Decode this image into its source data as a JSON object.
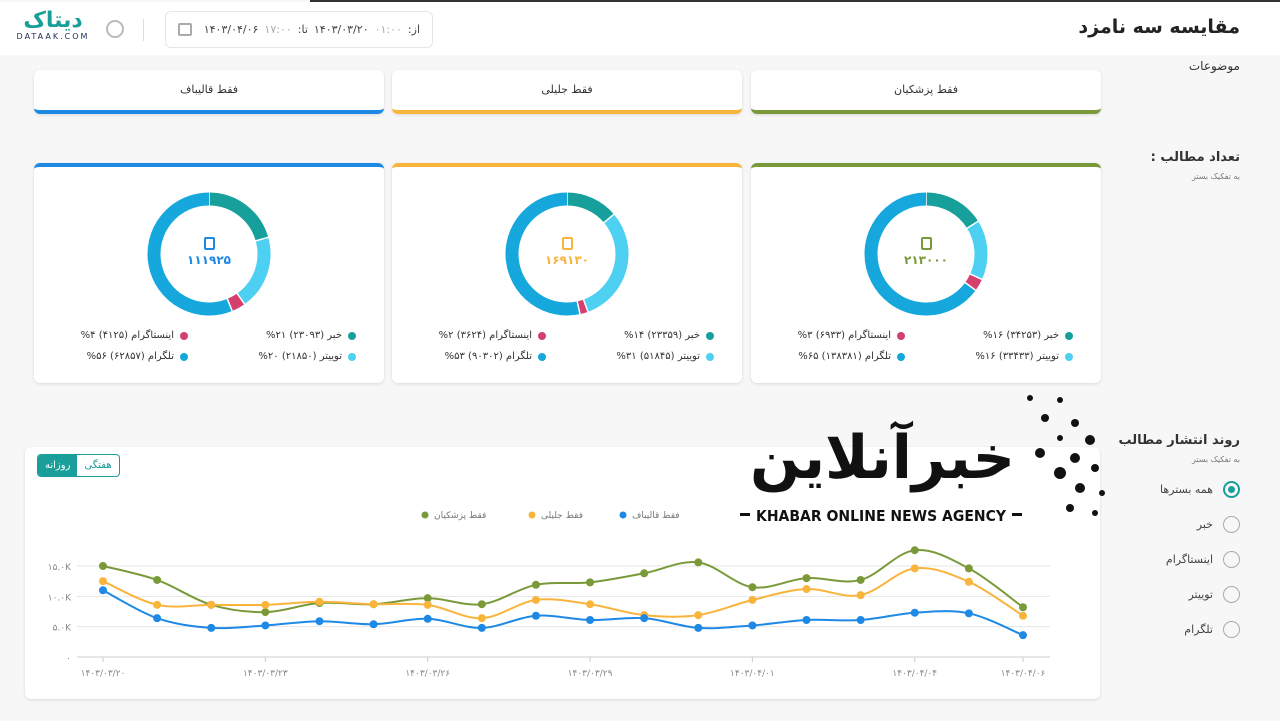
{
  "header": {
    "logo_fa": "دیتاک",
    "logo_en": "DATAAK.COM",
    "date_from_label": "از:",
    "date_from_time": "۰۱:۰۰",
    "date_from": "۱۴۰۳/۰۳/۲۰",
    "date_to_label": "تا:",
    "date_to_time": "۱۷:۰۰",
    "date_to": "۱۴۰۳/۰۴/۰۶",
    "title": "مقایسه سه نامزد"
  },
  "sidebar": {
    "topics_label": "موضوعات",
    "count_label": "تعداد مطالب :",
    "count_sub": "به تفکیک بستر",
    "trend_label": "روند انتشار مطالب",
    "trend_sub": "به تفکیک بستر",
    "radios": [
      {
        "label": "همه بسترها",
        "checked": true
      },
      {
        "label": "خبر"
      },
      {
        "label": "اینستاگرام"
      },
      {
        "label": "توییتر"
      },
      {
        "label": "تلگرام"
      }
    ]
  },
  "colors": {
    "news": "#17a09b",
    "twitter": "#4dd0f2",
    "instagram": "#d43f6e",
    "telegram": "#16a8dc",
    "pezeshkian": "#7a9a3a",
    "jalili": "#f9b43c",
    "ghalibaf": "#1e88e5"
  },
  "candidates": [
    {
      "name": "فقط پزشکیان",
      "color": "#7a9a3a",
      "total": "۲۱۳۰۰۰",
      "platforms": [
        {
          "label": "خبر (۳۴۲۵۳) ۱۶%",
          "value": 34253
        },
        {
          "label": "توییتر (۳۳۴۳۳) ۱۶%",
          "value": 33433
        },
        {
          "label": "اینستاگرام (۶۹۳۳) ۳%",
          "value": 6933
        },
        {
          "label": "تلگرام (۱۳۸۳۸۱) ۶۵%",
          "value": 138381
        }
      ]
    },
    {
      "name": "فقط جلیلی",
      "color": "#f9b43c",
      "total": "۱۶۹۱۳۰",
      "platforms": [
        {
          "label": "خبر (۲۳۳۵۹) ۱۴%",
          "value": 23359
        },
        {
          "label": "توییتر (۵۱۸۴۵) ۳۱%",
          "value": 51845
        },
        {
          "label": "اینستاگرام (۳۶۲۴) ۲%",
          "value": 3624
        },
        {
          "label": "تلگرام (۹۰۳۰۲) ۵۳%",
          "value": 90302
        }
      ]
    },
    {
      "name": "فقط قالیباف",
      "color": "#1e88e5",
      "total": "۱۱۱۹۲۵",
      "platforms": [
        {
          "label": "خبر (۲۳۰۹۳) ۲۱%",
          "value": 23093
        },
        {
          "label": "توییتر (۲۱۸۵۰) ۲۰%",
          "value": 21850
        },
        {
          "label": "اینستاگرام (۴۱۲۵) ۴%",
          "value": 4125
        },
        {
          "label": "تلگرام (۶۲۸۵۷) ۵۶%",
          "value": 62857
        }
      ]
    }
  ],
  "toggle": {
    "weekly": "هفتگی",
    "daily": "روزانه"
  },
  "watermark": {
    "fa": "خبرآنلاین",
    "en": "KHABAR ONLINE NEWS AGENCY"
  },
  "chart_data": {
    "type": "line",
    "ylim": [
      0,
      18000
    ],
    "yticks": [
      {
        "v": 0,
        "label": "۰"
      },
      {
        "v": 5000,
        "label": "۵.۰K"
      },
      {
        "v": 10000,
        "label": "۱۰.۰K"
      },
      {
        "v": 15000,
        "label": "۱۵.۰K"
      }
    ],
    "xticks": [
      {
        "i": 0,
        "label": "۱۴۰۳/۰۳/۲۰"
      },
      {
        "i": 3,
        "label": "۱۴۰۳/۰۳/۲۳"
      },
      {
        "i": 6,
        "label": "۱۴۰۳/۰۳/۲۶"
      },
      {
        "i": 9,
        "label": "۱۴۰۳/۰۳/۲۹"
      },
      {
        "i": 12,
        "label": "۱۴۰۳/۰۴/۰۱"
      },
      {
        "i": 15,
        "label": "۱۴۰۳/۰۴/۰۴"
      },
      {
        "i": 17,
        "label": "۱۴۰۳/۰۴/۰۶"
      }
    ],
    "series": [
      {
        "name": "فقط پزشکیان",
        "color": "#7a9a3a",
        "values": [
          15000,
          12700,
          8600,
          7400,
          8900,
          8700,
          9700,
          8700,
          11900,
          12300,
          13800,
          15600,
          11500,
          13000,
          12700,
          17600,
          14600,
          8200
        ]
      },
      {
        "name": "فقط جلیلی",
        "color": "#f9b43c",
        "values": [
          12500,
          8600,
          8600,
          8600,
          9100,
          8700,
          8600,
          6400,
          9400,
          8700,
          6900,
          6900,
          9400,
          11200,
          10200,
          14600,
          12400,
          6800
        ]
      },
      {
        "name": "فقط قالیباف",
        "color": "#1e88e5",
        "values": [
          11000,
          6400,
          4800,
          5200,
          5900,
          5400,
          6300,
          4800,
          6800,
          6100,
          6400,
          4800,
          5200,
          6100,
          6100,
          7300,
          7200,
          3600
        ]
      }
    ]
  }
}
